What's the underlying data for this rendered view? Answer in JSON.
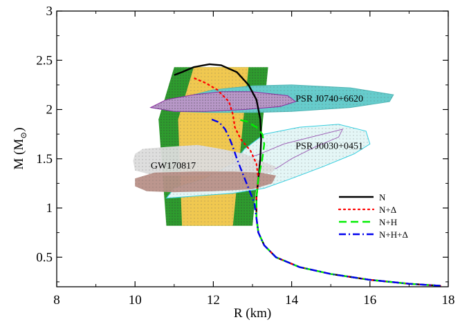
{
  "chart_data": {
    "type": "line",
    "title": "",
    "xlabel": "R (km)",
    "ylabel_main": "M (M",
    "ylabel_sub": "⊙",
    "ylabel_close": ")",
    "xlim": [
      8,
      18
    ],
    "ylim": [
      0.2,
      3.0
    ],
    "x_ticks": [
      8,
      10,
      12,
      14,
      16,
      18
    ],
    "y_ticks": [
      0.5,
      1,
      1.5,
      2,
      2.5,
      3
    ],
    "x_tick_labels": [
      "8",
      "10",
      "12",
      "14",
      "16",
      "18"
    ],
    "y_tick_labels": [
      "0.5",
      "1",
      "1.5",
      "2",
      "2.5",
      "3"
    ],
    "grid": false,
    "legend_position": "lower-right",
    "series": [
      {
        "name": "N",
        "color": "#000000",
        "style": "solid",
        "x": [
          17.8,
          17.0,
          16.0,
          15.0,
          14.2,
          13.6,
          13.3,
          13.15,
          13.1,
          13.1,
          13.15,
          13.2,
          13.22,
          13.2,
          13.1,
          12.9,
          12.6,
          12.2,
          11.9,
          11.5,
          11.2,
          11.0
        ],
        "y": [
          0.21,
          0.23,
          0.27,
          0.33,
          0.4,
          0.5,
          0.62,
          0.75,
          0.9,
          1.1,
          1.3,
          1.5,
          1.7,
          1.9,
          2.1,
          2.25,
          2.38,
          2.45,
          2.46,
          2.43,
          2.38,
          2.35
        ]
      },
      {
        "name": "N+Δ",
        "color": "#ff0000",
        "style": "dotted",
        "x": [
          17.8,
          17.0,
          16.0,
          15.0,
          14.2,
          13.6,
          13.3,
          13.15,
          13.1,
          13.1,
          13.15,
          13.1,
          12.95,
          12.7,
          12.55,
          12.5,
          12.4,
          12.1,
          11.8,
          11.5
        ],
        "y": [
          0.21,
          0.23,
          0.27,
          0.33,
          0.4,
          0.5,
          0.62,
          0.75,
          0.9,
          1.1,
          1.3,
          1.45,
          1.58,
          1.7,
          1.82,
          1.95,
          2.08,
          2.2,
          2.27,
          2.32
        ]
      },
      {
        "name": "N+H",
        "color": "#00ee00",
        "style": "dashed",
        "x": [
          17.8,
          17.0,
          16.0,
          15.0,
          14.2,
          13.6,
          13.3,
          13.15,
          13.1,
          13.1,
          13.15,
          13.25,
          13.3,
          13.25,
          13.1,
          12.85,
          12.6
        ],
        "y": [
          0.21,
          0.23,
          0.27,
          0.33,
          0.4,
          0.5,
          0.62,
          0.75,
          0.9,
          1.1,
          1.3,
          1.5,
          1.65,
          1.75,
          1.82,
          1.88,
          1.9
        ]
      },
      {
        "name": "N+H+Δ",
        "color": "#0000ee",
        "style": "dashdot",
        "x": [
          17.8,
          17.0,
          16.0,
          15.0,
          14.2,
          13.6,
          13.3,
          13.15,
          13.1,
          13.05,
          12.9,
          12.75,
          12.6,
          12.5,
          12.4,
          12.3,
          12.15,
          11.95
        ],
        "y": [
          0.21,
          0.23,
          0.27,
          0.33,
          0.4,
          0.5,
          0.62,
          0.75,
          0.9,
          1.05,
          1.2,
          1.35,
          1.5,
          1.62,
          1.72,
          1.8,
          1.87,
          1.9
        ]
      }
    ],
    "annotations": [
      {
        "text": "PSR J0740+6620",
        "x": 14.1,
        "y": 2.08
      },
      {
        "text": "PSR J0030+0451",
        "x": 14.1,
        "y": 1.6
      },
      {
        "text": "GW170817",
        "x": 10.4,
        "y": 1.4
      }
    ],
    "regions": [
      {
        "name": "GW170817-upper-region",
        "color": "#d8d8d8",
        "points": [
          [
            10.0,
            1.55
          ],
          [
            10.2,
            1.6
          ],
          [
            10.8,
            1.62
          ],
          [
            11.6,
            1.64
          ],
          [
            12.2,
            1.6
          ],
          [
            12.8,
            1.55
          ],
          [
            13.2,
            1.48
          ],
          [
            13.6,
            1.42
          ],
          [
            13.5,
            1.36
          ],
          [
            12.6,
            1.34
          ],
          [
            11.5,
            1.33
          ],
          [
            10.5,
            1.33
          ],
          [
            10.0,
            1.38
          ],
          [
            9.95,
            1.48
          ]
        ]
      },
      {
        "name": "GW170817-lower-region",
        "color": "#b89088",
        "points": [
          [
            10.0,
            1.3
          ],
          [
            10.5,
            1.36
          ],
          [
            11.5,
            1.37
          ],
          [
            12.5,
            1.37
          ],
          [
            13.2,
            1.36
          ],
          [
            13.6,
            1.33
          ],
          [
            13.5,
            1.25
          ],
          [
            13.0,
            1.19
          ],
          [
            12.0,
            1.17
          ],
          [
            11.0,
            1.16
          ],
          [
            10.3,
            1.17
          ],
          [
            10.0,
            1.22
          ]
        ]
      },
      {
        "name": "PSR-J0740-region",
        "color": "#66cccc",
        "points": [
          [
            10.4,
            2.02
          ],
          [
            11.0,
            2.1
          ],
          [
            12.0,
            2.2
          ],
          [
            13.0,
            2.24
          ],
          [
            14.0,
            2.25
          ],
          [
            15.5,
            2.22
          ],
          [
            16.6,
            2.15
          ],
          [
            16.5,
            2.08
          ],
          [
            15.5,
            2.02
          ],
          [
            14.0,
            1.98
          ],
          [
            13.0,
            1.97
          ],
          [
            12.0,
            1.97
          ],
          [
            11.0,
            1.98
          ]
        ]
      },
      {
        "name": "PSR-J0740-inner-region",
        "color": "#b898c8",
        "points": [
          [
            10.4,
            2.02
          ],
          [
            10.8,
            2.1
          ],
          [
            11.5,
            2.15
          ],
          [
            12.2,
            2.18
          ],
          [
            13.0,
            2.18
          ],
          [
            13.9,
            2.14
          ],
          [
            14.1,
            2.08
          ],
          [
            13.7,
            2.03
          ],
          [
            12.8,
            2.0
          ],
          [
            11.8,
            1.98
          ],
          [
            11.0,
            1.98
          ]
        ]
      },
      {
        "name": "PSR-J0030-region",
        "color": "#c8ecec",
        "points": [
          [
            10.8,
            1.1
          ],
          [
            11.5,
            1.12
          ],
          [
            12.5,
            1.15
          ],
          [
            13.3,
            1.2
          ],
          [
            14.0,
            1.3
          ],
          [
            14.8,
            1.42
          ],
          [
            15.6,
            1.55
          ],
          [
            16.0,
            1.65
          ],
          [
            15.9,
            1.78
          ],
          [
            15.2,
            1.85
          ],
          [
            14.2,
            1.82
          ],
          [
            13.3,
            1.75
          ],
          [
            12.8,
            1.6
          ],
          [
            12.5,
            1.45
          ],
          [
            11.8,
            1.3
          ],
          [
            11.0,
            1.2
          ]
        ]
      },
      {
        "name": "PSR-J0030-inner-region",
        "color": "#9f65b8",
        "points": [
          [
            12.5,
            1.45
          ],
          [
            13.2,
            1.55
          ],
          [
            13.8,
            1.65
          ],
          [
            14.5,
            1.72
          ],
          [
            15.3,
            1.8
          ],
          [
            15.2,
            1.72
          ],
          [
            14.6,
            1.62
          ],
          [
            14.0,
            1.5
          ],
          [
            13.6,
            1.4
          ],
          [
            13.2,
            1.4
          ],
          [
            12.8,
            1.42
          ]
        ]
      },
      {
        "name": "green-band-region",
        "color": "#2e9b2e",
        "points": [
          [
            11.0,
            2.43
          ],
          [
            13.4,
            2.43
          ],
          [
            13.0,
            0.82
          ],
          [
            10.8,
            0.82
          ],
          [
            10.6,
            1.9
          ]
        ]
      },
      {
        "name": "yellow-band-region",
        "color": "#f0c850",
        "points": [
          [
            11.5,
            2.43
          ],
          [
            12.9,
            2.43
          ],
          [
            12.5,
            0.82
          ],
          [
            11.2,
            0.82
          ],
          [
            11.1,
            1.9
          ]
        ]
      }
    ]
  }
}
